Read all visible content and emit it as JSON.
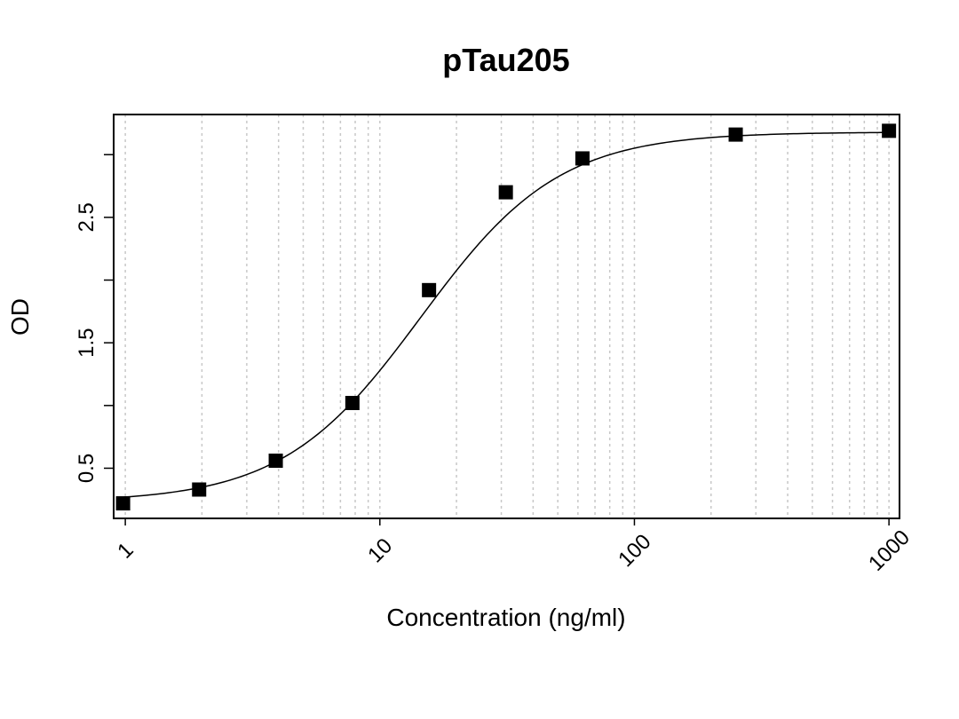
{
  "chart_data": {
    "type": "scatter",
    "title": "pTau205",
    "xlabel": "Concentration (ng/ml)",
    "ylabel": "OD",
    "xscale": "log",
    "xlim": [
      0.9,
      1100
    ],
    "ylim": [
      0.1,
      3.32
    ],
    "x_ticks": [
      1,
      10,
      100,
      1000
    ],
    "x_tick_labels": [
      "1",
      "10",
      "100",
      "1000"
    ],
    "y_ticks": [
      0.5,
      1.0,
      1.5,
      2.0,
      2.5,
      3.0
    ],
    "y_tick_labels": [
      "0.5",
      "",
      "1.5",
      "",
      "2.5",
      ""
    ],
    "grid": "vertical dotted at log minor ticks",
    "marker": "square",
    "series": [
      {
        "x": [
          0.98,
          1.95,
          3.9,
          7.8,
          15.6,
          31.25,
          62.5,
          250,
          1000
        ],
        "y": [
          0.22,
          0.33,
          0.56,
          1.02,
          1.92,
          2.7,
          2.97,
          3.16,
          3.19
        ]
      }
    ],
    "fit_curve": {
      "type": "4PL",
      "bottom": 0.23,
      "top": 3.18,
      "ec50": 14.5,
      "hill": 1.6
    }
  },
  "colors": {
    "marks": "#000000",
    "grid": "#c8c8c8",
    "background": "#ffffff"
  }
}
